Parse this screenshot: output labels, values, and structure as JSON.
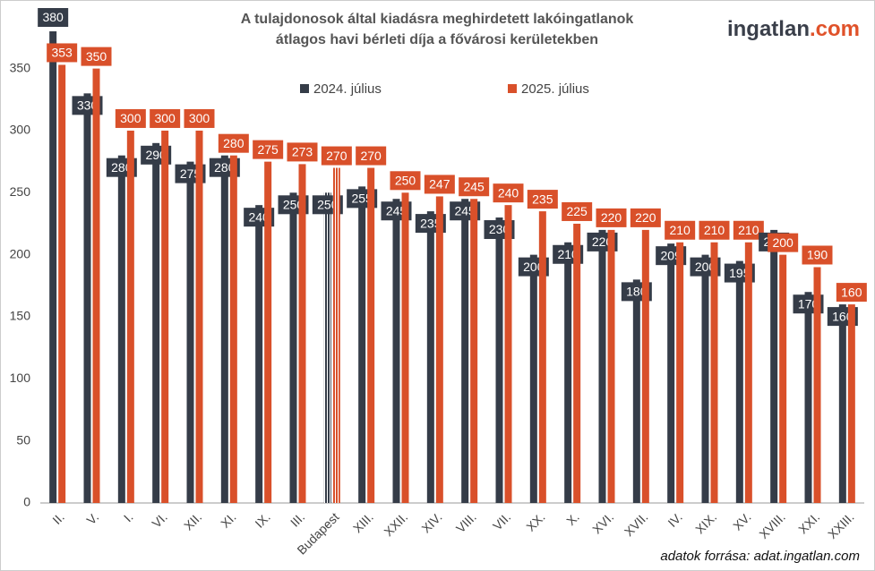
{
  "chart_data": {
    "type": "bar",
    "title": [
      "A tulajdonosok által kiadásra meghirdetett lakóingatlanok",
      "átlagos havi bérleti díja a fővárosi kerületekben"
    ],
    "brand": [
      "ingatlan",
      ".com"
    ],
    "source": "adatok forrása: adat.ingatlan.com",
    "categories": [
      "II.",
      "V.",
      "I.",
      "VI.",
      "XII.",
      "XI.",
      "IX.",
      "III.",
      "Budapest",
      "XIII.",
      "XXII.",
      "XIV.",
      "VIII.",
      "VII.",
      "XX.",
      "X.",
      "XVI.",
      "XVII.",
      "IV.",
      "XIX.",
      "XV.",
      "XVIII.",
      "XXI.",
      "XXIII."
    ],
    "series": [
      {
        "name": "2024. július",
        "color": "#353c48",
        "values": [
          380,
          330,
          280,
          290,
          275,
          280,
          240,
          250,
          250,
          255,
          245,
          235,
          245,
          230,
          200,
          210,
          220,
          180,
          209,
          200,
          195,
          220,
          170,
          160
        ]
      },
      {
        "name": "2025. július",
        "color": "#d9502a",
        "values": [
          353,
          350,
          300,
          300,
          300,
          280,
          275,
          273,
          270,
          270,
          250,
          247,
          245,
          240,
          235,
          225,
          220,
          220,
          210,
          210,
          210,
          200,
          190,
          160
        ]
      }
    ],
    "highlight": "Budapest",
    "ylim": [
      0,
      380
    ],
    "yticks": [
      0,
      50,
      100,
      150,
      200,
      250,
      300,
      350
    ],
    "grid": false
  }
}
